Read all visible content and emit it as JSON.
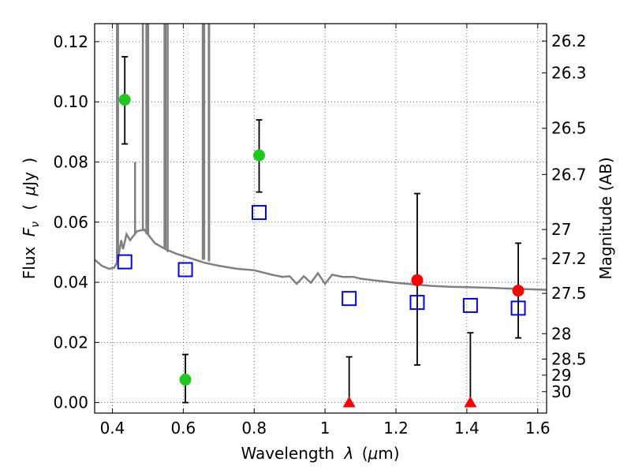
{
  "chart_data": {
    "type": "scatter",
    "xlabel_parts": [
      "Wavelength",
      "λ",
      "(",
      "μ",
      "m)"
    ],
    "ylabel_parts": [
      "Flux",
      "F",
      "ν",
      "(",
      "μ",
      "Jy",
      ")"
    ],
    "y2label": "Magnitude (AB)",
    "xlim": [
      0.35,
      1.625
    ],
    "ylim": [
      -0.0035,
      0.126
    ],
    "x_ticks": [
      0.4,
      0.6,
      0.8,
      1.0,
      1.2,
      1.4,
      1.6
    ],
    "x_tick_labels": [
      "0.4",
      "0.6",
      "0.8",
      "1",
      "1.2",
      "1.4",
      "1.6"
    ],
    "y_ticks": [
      0.0,
      0.02,
      0.04,
      0.06,
      0.08,
      0.1,
      0.12
    ],
    "y_tick_labels": [
      "0.00",
      "0.02",
      "0.04",
      "0.06",
      "0.08",
      "0.10",
      "0.12"
    ],
    "mag_ticks": [
      "26.2",
      "26.3",
      "26.5",
      "26.7",
      "27",
      "27.2",
      "27.5",
      "28",
      "28.5",
      "29",
      "30"
    ],
    "grid": true,
    "colors": {
      "model": "#808080",
      "green": "#1ec81e",
      "red": "#ff0000",
      "blue_square": "#0000ff",
      "errorbar": "#000000"
    },
    "series": [
      {
        "marker": "circle",
        "color": "green",
        "points": [
          {
            "x": 0.435,
            "y": 0.1007,
            "lo": 0.086,
            "hi": 0.115
          },
          {
            "x": 0.606,
            "y": 0.0076,
            "lo": 0.0,
            "hi": 0.016
          },
          {
            "x": 0.814,
            "y": 0.0822,
            "lo": 0.07,
            "hi": 0.094
          }
        ]
      },
      {
        "marker": "circle",
        "color": "red",
        "points": [
          {
            "x": 1.26,
            "y": 0.0407,
            "lo": 0.0125,
            "hi": 0.0695
          },
          {
            "x": 1.545,
            "y": 0.0372,
            "lo": 0.0215,
            "hi": 0.053
          }
        ]
      },
      {
        "marker": "triangle",
        "color": "red",
        "points": [
          {
            "x": 1.068,
            "y": 0.0,
            "lo": 0.0,
            "hi": 0.0152
          },
          {
            "x": 1.41,
            "y": 0.0,
            "lo": 0.0,
            "hi": 0.0232
          }
        ]
      },
      {
        "marker": "square",
        "color": "blue_square",
        "points": [
          {
            "x": 0.435,
            "y": 0.0468
          },
          {
            "x": 0.606,
            "y": 0.0442
          },
          {
            "x": 0.814,
            "y": 0.0632
          },
          {
            "x": 1.068,
            "y": 0.0346
          },
          {
            "x": 1.26,
            "y": 0.0333
          },
          {
            "x": 1.41,
            "y": 0.0323
          },
          {
            "x": 1.545,
            "y": 0.0314
          }
        ]
      }
    ],
    "model_spectrum": [
      [
        0.35,
        0.0475
      ],
      [
        0.37,
        0.0455
      ],
      [
        0.39,
        0.0445
      ],
      [
        0.405,
        0.0448
      ],
      [
        0.415,
        0.047
      ],
      [
        0.425,
        0.054
      ],
      [
        0.43,
        0.051
      ],
      [
        0.44,
        0.056
      ],
      [
        0.45,
        0.054
      ],
      [
        0.47,
        0.057
      ],
      [
        0.49,
        0.0575
      ],
      [
        0.52,
        0.053
      ],
      [
        0.55,
        0.051
      ],
      [
        0.58,
        0.0495
      ],
      [
        0.62,
        0.048
      ],
      [
        0.66,
        0.0465
      ],
      [
        0.7,
        0.0455
      ],
      [
        0.75,
        0.0445
      ],
      [
        0.8,
        0.044
      ],
      [
        0.85,
        0.0425
      ],
      [
        0.88,
        0.0418
      ],
      [
        0.9,
        0.042
      ],
      [
        0.92,
        0.0395
      ],
      [
        0.94,
        0.042
      ],
      [
        0.96,
        0.0398
      ],
      [
        0.98,
        0.043
      ],
      [
        1.0,
        0.0395
      ],
      [
        1.02,
        0.0425
      ],
      [
        1.05,
        0.0418
      ],
      [
        1.08,
        0.0418
      ],
      [
        1.1,
        0.0412
      ],
      [
        1.15,
        0.0405
      ],
      [
        1.2,
        0.0398
      ],
      [
        1.25,
        0.0393
      ],
      [
        1.3,
        0.0388
      ],
      [
        1.35,
        0.0385
      ],
      [
        1.4,
        0.0384
      ],
      [
        1.45,
        0.0382
      ],
      [
        1.5,
        0.038
      ],
      [
        1.55,
        0.0378
      ],
      [
        1.625,
        0.0375
      ]
    ],
    "emission_lines": [
      [
        0.413,
        0.046
      ],
      [
        0.416,
        0.047
      ],
      [
        0.486,
        0.057
      ],
      [
        0.496,
        0.056
      ],
      [
        0.5,
        0.056
      ],
      [
        0.501,
        0.056
      ],
      [
        0.547,
        0.051
      ],
      [
        0.55,
        0.051
      ],
      [
        0.556,
        0.05
      ],
      [
        0.655,
        0.0475
      ],
      [
        0.657,
        0.0475
      ],
      [
        0.659,
        0.0475
      ],
      [
        0.672,
        0.047
      ],
      [
        0.673,
        0.047
      ]
    ]
  }
}
